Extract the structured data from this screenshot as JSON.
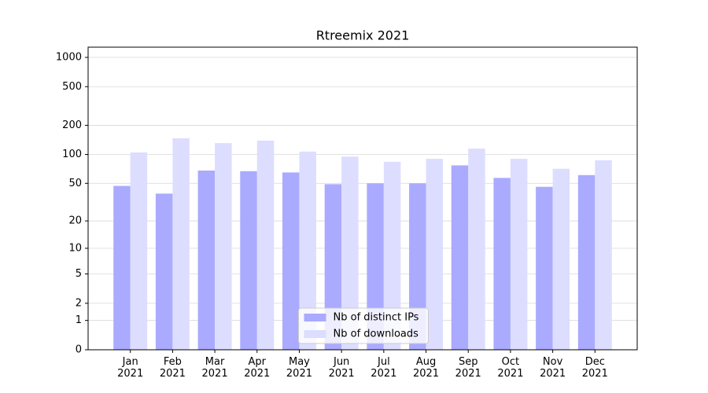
{
  "chart_data": {
    "type": "bar",
    "title": "Rtreemix 2021",
    "yscale": "log1p",
    "categories": [
      "Jan 2021",
      "Feb 2021",
      "Mar 2021",
      "Apr 2021",
      "May 2021",
      "Jun 2021",
      "Jul 2021",
      "Aug 2021",
      "Sep 2021",
      "Oct 2021",
      "Nov 2021",
      "Dec 2021"
    ],
    "series": [
      {
        "name": "Nb of distinct IPs",
        "color": "#aaaaff",
        "values": [
          47,
          39,
          68,
          67,
          65,
          49,
          50,
          50,
          77,
          57,
          46,
          61
        ]
      },
      {
        "name": "Nb of downloads",
        "color": "#ddddff",
        "values": [
          105,
          147,
          131,
          139,
          107,
          95,
          84,
          90,
          115,
          90,
          71,
          87
        ]
      }
    ],
    "ylim": [
      0,
      1273
    ],
    "yticks": [
      0,
      1,
      2,
      5,
      10,
      20,
      50,
      100,
      200,
      500,
      1000
    ],
    "grid": true,
    "legend": "lower center"
  }
}
